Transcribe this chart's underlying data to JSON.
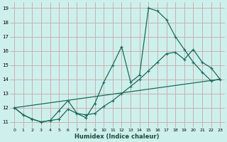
{
  "xlabel": "Humidex (Indice chaleur)",
  "bg_color": "#cef0ec",
  "grid_color": "#c8a8a8",
  "line_color": "#1a6b5a",
  "xlim": [
    -0.5,
    23.5
  ],
  "ylim": [
    10.6,
    19.4
  ],
  "xticks": [
    0,
    1,
    2,
    3,
    4,
    5,
    6,
    7,
    8,
    9,
    10,
    11,
    12,
    13,
    14,
    15,
    16,
    17,
    18,
    19,
    20,
    21,
    22,
    23
  ],
  "yticks": [
    11,
    12,
    13,
    14,
    15,
    16,
    17,
    18,
    19
  ],
  "line1_x": [
    0,
    1,
    2,
    3,
    4,
    5,
    6,
    7,
    8,
    9,
    10,
    11,
    12,
    13,
    14,
    15,
    16,
    17,
    18,
    19,
    20,
    21,
    22,
    23
  ],
  "line1_y": [
    12.0,
    11.5,
    11.2,
    11.0,
    11.1,
    11.8,
    12.5,
    11.6,
    11.3,
    12.3,
    13.8,
    15.0,
    16.3,
    13.8,
    14.3,
    19.0,
    18.8,
    18.2,
    17.0,
    16.1,
    15.2,
    14.5,
    13.9,
    14.0
  ],
  "line2_x": [
    0,
    1,
    2,
    3,
    4,
    5,
    6,
    7,
    8,
    9,
    10,
    11,
    12,
    13,
    14,
    15,
    16,
    17,
    18,
    19,
    20,
    21,
    22,
    23
  ],
  "line2_y": [
    12.0,
    11.5,
    11.2,
    11.0,
    11.1,
    11.2,
    11.9,
    11.6,
    11.5,
    11.6,
    12.1,
    12.5,
    13.0,
    13.5,
    14.0,
    14.6,
    15.2,
    15.8,
    15.9,
    15.4,
    16.1,
    15.2,
    14.8,
    14.0
  ],
  "line3_x": [
    0,
    23
  ],
  "line3_y": [
    12.0,
    14.0
  ]
}
